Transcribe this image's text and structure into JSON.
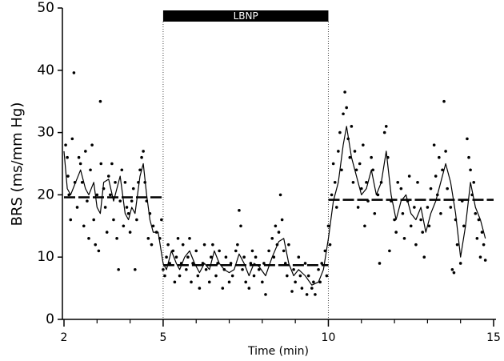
{
  "chart_data": {
    "type": "scatter",
    "xlabel": "Time (min)",
    "ylabel": "BRS (ms/mm Hg)",
    "xlim": [
      2,
      15
    ],
    "xticks": [
      2,
      5,
      10,
      15
    ],
    "xminor_ticks": [
      3,
      4,
      6,
      7,
      8,
      9,
      11,
      12,
      13,
      14
    ],
    "ylim": [
      0,
      50
    ],
    "yticks": [
      0,
      10,
      20,
      30,
      40,
      50
    ],
    "span": {
      "label": "LBNP",
      "x": [
        5,
        10
      ],
      "color": "#000000"
    },
    "series": [
      {
        "mark": "dot",
        "color": "#000000",
        "x": [
          2.05,
          2.1,
          2.12,
          2.15,
          2.2,
          2.25,
          2.3,
          2.33,
          2.4,
          2.45,
          2.5,
          2.55,
          2.6,
          2.65,
          2.7,
          2.75,
          2.8,
          2.85,
          2.9,
          2.95,
          3.0,
          3.05,
          3.1,
          3.12,
          3.2,
          3.25,
          3.3,
          3.35,
          3.4,
          3.45,
          3.5,
          3.55,
          3.6,
          3.65,
          3.7,
          3.75,
          3.8,
          3.85,
          3.9,
          3.95,
          4.0,
          4.05,
          4.1,
          4.15,
          4.2,
          4.25,
          4.3,
          4.35,
          4.4,
          4.45,
          4.5,
          4.55,
          4.6,
          4.65,
          4.7,
          4.8,
          4.9,
          4.95
        ],
        "values": [
          28,
          26,
          23,
          20,
          16,
          29,
          39.6,
          22,
          18,
          26,
          25,
          22,
          15,
          27,
          19,
          13,
          24,
          28,
          16,
          12,
          20,
          11,
          35,
          25,
          21,
          18,
          14,
          23,
          20,
          25,
          16,
          22,
          13,
          8,
          19,
          24,
          15,
          22,
          18,
          17,
          14,
          19,
          21,
          8,
          16,
          22,
          24,
          26,
          27,
          22,
          19,
          13,
          17,
          12,
          15,
          14,
          13,
          16
        ]
      },
      {
        "mark": "dot",
        "color": "#000000",
        "x": [
          5.0,
          5.05,
          5.1,
          5.15,
          5.2,
          5.3,
          5.35,
          5.4,
          5.45,
          5.5,
          5.55,
          5.6,
          5.7,
          5.75,
          5.8,
          5.85,
          5.9,
          6.0,
          6.05,
          6.1,
          6.2,
          6.25,
          6.3,
          6.4,
          6.45,
          6.5,
          6.6,
          6.65,
          6.7,
          6.8,
          6.85,
          6.9,
          7.0,
          7.05,
          7.1,
          7.2,
          7.25,
          7.3,
          7.35,
          7.4,
          7.45,
          7.5,
          7.6,
          7.65,
          7.7,
          7.75,
          7.8,
          7.9,
          8.0,
          8.05,
          8.1,
          8.2,
          8.3,
          8.35,
          8.4,
          8.45,
          8.5,
          8.55,
          8.6,
          8.65,
          8.7,
          8.75,
          8.8,
          8.9,
          8.95,
          9.0,
          9.1,
          9.15,
          9.2,
          9.3,
          9.35,
          9.4,
          9.5,
          9.55,
          9.6,
          9.7,
          9.75,
          9.8,
          9.9,
          9.95
        ],
        "values": [
          8,
          7,
          10,
          12,
          9,
          11,
          6,
          10,
          13,
          7,
          9,
          12,
          8,
          10,
          13,
          6,
          9,
          11,
          7,
          5,
          9,
          12,
          8,
          6,
          10,
          12,
          7,
          9,
          11,
          5,
          8,
          10,
          6,
          9,
          7,
          11,
          12,
          17.5,
          15,
          8,
          10,
          6,
          5,
          9,
          11,
          7,
          10,
          8,
          6,
          9,
          4,
          11,
          13,
          10,
          15,
          12,
          14,
          20,
          16,
          11,
          9,
          7,
          12,
          4.5,
          8,
          6,
          10,
          7,
          5,
          9,
          4,
          7,
          5,
          6,
          4,
          8,
          6,
          9,
          11,
          7
        ]
      },
      {
        "mark": "dot",
        "color": "#000000",
        "x": [
          10.0,
          10.05,
          10.1,
          10.15,
          10.2,
          10.25,
          10.3,
          10.35,
          10.4,
          10.45,
          10.5,
          10.55,
          10.6,
          10.65,
          10.7,
          10.75,
          10.8,
          10.85,
          10.9,
          10.95,
          11.0,
          11.05,
          11.1,
          11.15,
          11.2,
          11.3,
          11.35,
          11.4,
          11.5,
          11.55,
          11.6,
          11.7,
          11.75,
          11.8,
          11.85,
          11.9,
          12.0,
          12.05,
          12.1,
          12.2,
          12.25,
          12.3,
          12.4,
          12.45,
          12.5,
          12.6,
          12.65,
          12.7,
          12.8,
          12.85,
          12.9,
          13.0,
          13.05,
          13.1,
          13.2,
          13.25,
          13.3,
          13.35,
          13.4,
          13.45,
          13.5,
          13.55,
          13.6,
          13.7,
          13.75,
          13.8,
          13.85,
          13.9,
          14.0,
          14.05,
          14.1,
          14.2,
          14.25,
          14.3,
          14.35,
          14.4,
          14.45,
          14.5,
          14.55,
          14.6,
          14.65,
          14.7,
          14.75
        ],
        "values": [
          15,
          12,
          20,
          25,
          22,
          18,
          27,
          30,
          24,
          33,
          36.5,
          34,
          29,
          26,
          31,
          22,
          27,
          24,
          18,
          25,
          21,
          28,
          15,
          22,
          19,
          26,
          24,
          17,
          20,
          9,
          22,
          30,
          31,
          26,
          11,
          19,
          16,
          14,
          22,
          21,
          17,
          13,
          19,
          23,
          15,
          18,
          12,
          22,
          16,
          14,
          10,
          18,
          15,
          21,
          28,
          23,
          20,
          26,
          17,
          24,
          35,
          27,
          21,
          18,
          8,
          7.5,
          16,
          12,
          9,
          19,
          15,
          29,
          26,
          24,
          20,
          22,
          17,
          13,
          16,
          10,
          14,
          12,
          9.5
        ]
      },
      {
        "mark": "line",
        "color": "#000000",
        "x": [
          2.0,
          2.1,
          2.2,
          2.35,
          2.5,
          2.65,
          2.75,
          2.9,
          3.0,
          3.1,
          3.2,
          3.35,
          3.5,
          3.6,
          3.7,
          3.85,
          3.95,
          4.05,
          4.15,
          4.3,
          4.4,
          4.5,
          4.6,
          4.7,
          4.85,
          5.0,
          5.1,
          5.25,
          5.4,
          5.5,
          5.65,
          5.8,
          5.95,
          6.1,
          6.25,
          6.4,
          6.55,
          6.7,
          6.85,
          7.0,
          7.15,
          7.3,
          7.45,
          7.6,
          7.75,
          7.9,
          8.1,
          8.3,
          8.5,
          8.65,
          8.8,
          8.95,
          9.1,
          9.3,
          9.5,
          9.7,
          9.85,
          10.0,
          10.15,
          10.3,
          10.45,
          10.55,
          10.7,
          10.85,
          11.0,
          11.15,
          11.3,
          11.45,
          11.6,
          11.75,
          11.9,
          12.05,
          12.2,
          12.35,
          12.5,
          12.65,
          12.8,
          12.95,
          13.1,
          13.25,
          13.4,
          13.55,
          13.7,
          13.85,
          14.0,
          14.15,
          14.3,
          14.45,
          14.6,
          14.75
        ],
        "values": [
          27,
          21,
          20,
          22,
          24,
          21,
          20,
          22,
          18,
          17,
          22,
          22.5,
          19,
          21,
          23,
          17,
          16,
          18,
          17,
          23,
          25,
          20,
          16,
          14,
          14,
          9,
          8,
          11,
          9,
          8,
          10,
          11,
          9,
          7.5,
          9,
          8,
          11,
          9,
          8,
          7.5,
          8,
          10.5,
          9,
          7,
          9,
          8.5,
          7,
          10,
          12.5,
          13,
          9,
          7,
          8,
          7,
          5.5,
          6,
          8,
          13,
          19,
          22,
          28,
          31,
          26,
          23,
          20,
          21,
          24,
          20,
          22,
          27,
          20,
          16,
          19,
          20,
          17,
          16,
          18,
          14,
          17,
          19,
          22,
          25,
          22,
          17,
          10,
          15,
          22,
          18,
          16,
          13
        ]
      },
      {
        "mark": "dashed",
        "color": "#000000",
        "x": [
          2,
          5
        ],
        "values": [
          19.6,
          19.6
        ]
      },
      {
        "mark": "dashed",
        "color": "#000000",
        "x": [
          5,
          10
        ],
        "values": [
          8.7,
          8.7
        ]
      },
      {
        "mark": "dashed",
        "color": "#000000",
        "x": [
          10,
          15
        ],
        "values": [
          19.2,
          19.2
        ]
      }
    ]
  }
}
